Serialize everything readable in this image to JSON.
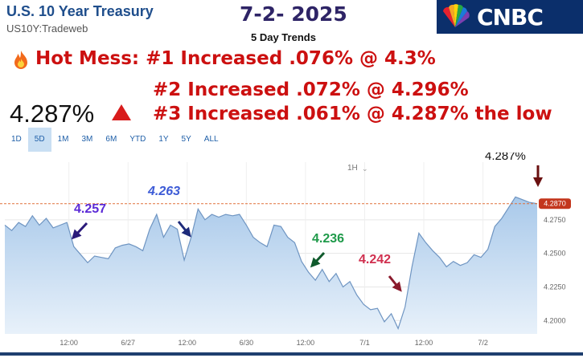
{
  "header": {
    "title": "U.S. 10 Year Treasury",
    "subtitle": "US10Y:Tradeweb",
    "date": "7-2- 2025",
    "trends_label": "5 Day Trends",
    "logo_text": "CNBC"
  },
  "headlines": {
    "line1": "Hot Mess: #1 Increased .076% @ 4.3%",
    "line2": "#2 Increased .072% @ 4.296%",
    "line3": "#3 Increased .061% @ 4.287% the low"
  },
  "quote": {
    "price": "4.287%",
    "direction_icon": "triangle-up-icon",
    "direction_color": "#d81c1c"
  },
  "range_tabs": [
    {
      "label": "1D",
      "active": false
    },
    {
      "label": "5D",
      "active": true
    },
    {
      "label": "1M",
      "active": false
    },
    {
      "label": "3M",
      "active": false
    },
    {
      "label": "6M",
      "active": false
    },
    {
      "label": "YTD",
      "active": false
    },
    {
      "label": "1Y",
      "active": false
    },
    {
      "label": "5Y",
      "active": false
    },
    {
      "label": "ALL",
      "active": false
    }
  ],
  "interval_label": "1H",
  "chart_data": {
    "type": "area",
    "ylim": [
      4.19,
      4.3
    ],
    "y_ticks": [
      "4.2750",
      "4.2500",
      "4.2250",
      "4.2000"
    ],
    "y_tick_values": [
      4.275,
      4.25,
      4.225,
      4.2
    ],
    "x_ticks": [
      {
        "label": "12:00",
        "x": 6.5
      },
      {
        "label": "6/27",
        "x": 12.5
      },
      {
        "label": "12:00",
        "x": 18.5
      },
      {
        "label": "6/30",
        "x": 24.5
      },
      {
        "label": "12:00",
        "x": 30.5
      },
      {
        "label": "7/1",
        "x": 36.5
      },
      {
        "label": "12:00",
        "x": 42.5
      },
      {
        "label": "7/2",
        "x": 48.5
      }
    ],
    "x_range": [
      0,
      54
    ],
    "last_value": 4.287,
    "last_value_label": "4.2870",
    "series": [
      {
        "values": [
          [
            0,
            4.271
          ],
          [
            0.7,
            4.267
          ],
          [
            1.4,
            4.273
          ],
          [
            2.1,
            4.27
          ],
          [
            2.8,
            4.278
          ],
          [
            3.5,
            4.271
          ],
          [
            4.2,
            4.276
          ],
          [
            4.9,
            4.269
          ],
          [
            5.6,
            4.271
          ],
          [
            6.3,
            4.273
          ],
          [
            7.0,
            4.255
          ],
          [
            7.7,
            4.249
          ],
          [
            8.4,
            4.243
          ],
          [
            9.1,
            4.248
          ],
          [
            9.8,
            4.247
          ],
          [
            10.5,
            4.246
          ],
          [
            11.2,
            4.254
          ],
          [
            11.9,
            4.256
          ],
          [
            12.6,
            4.257
          ],
          [
            13.3,
            4.255
          ],
          [
            14.0,
            4.252
          ],
          [
            14.7,
            4.268
          ],
          [
            15.4,
            4.279
          ],
          [
            16.1,
            4.262
          ],
          [
            16.8,
            4.271
          ],
          [
            17.5,
            4.268
          ],
          [
            18.2,
            4.245
          ],
          [
            18.9,
            4.262
          ],
          [
            19.6,
            4.283
          ],
          [
            20.3,
            4.275
          ],
          [
            21.0,
            4.279
          ],
          [
            21.7,
            4.277
          ],
          [
            22.4,
            4.279
          ],
          [
            23.1,
            4.278
          ],
          [
            23.8,
            4.279
          ],
          [
            24.5,
            4.271
          ],
          [
            25.2,
            4.262
          ],
          [
            25.9,
            4.258
          ],
          [
            26.6,
            4.255
          ],
          [
            27.3,
            4.271
          ],
          [
            28.0,
            4.27
          ],
          [
            28.7,
            4.262
          ],
          [
            29.4,
            4.258
          ],
          [
            30.1,
            4.244
          ],
          [
            30.8,
            4.236
          ],
          [
            31.5,
            4.23
          ],
          [
            32.2,
            4.238
          ],
          [
            32.9,
            4.229
          ],
          [
            33.6,
            4.235
          ],
          [
            34.3,
            4.225
          ],
          [
            35.0,
            4.229
          ],
          [
            35.7,
            4.219
          ],
          [
            36.4,
            4.212
          ],
          [
            37.1,
            4.208
          ],
          [
            37.8,
            4.209
          ],
          [
            38.5,
            4.199
          ],
          [
            39.2,
            4.205
          ],
          [
            39.9,
            4.194
          ],
          [
            40.6,
            4.21
          ],
          [
            41.3,
            4.24
          ],
          [
            42.0,
            4.265
          ],
          [
            42.7,
            4.258
          ],
          [
            43.4,
            4.252
          ],
          [
            44.1,
            4.247
          ],
          [
            44.8,
            4.24
          ],
          [
            45.5,
            4.244
          ],
          [
            46.2,
            4.241
          ],
          [
            46.9,
            4.243
          ],
          [
            47.6,
            4.249
          ],
          [
            48.3,
            4.247
          ],
          [
            49.0,
            4.253
          ],
          [
            49.7,
            4.27
          ],
          [
            50.4,
            4.276
          ],
          [
            51.1,
            4.284
          ],
          [
            51.8,
            4.292
          ],
          [
            52.5,
            4.29
          ],
          [
            53.2,
            4.288
          ],
          [
            54.0,
            4.287
          ]
        ]
      }
    ],
    "annotations": [
      {
        "text": "4.257",
        "color": "#5b2ad6"
      },
      {
        "text": "4.263",
        "color": "#3d5bd6"
      },
      {
        "text": "4.236",
        "color": "#1f9a4a"
      },
      {
        "text": "4.242",
        "color": "#d0304f"
      },
      {
        "text": "4.287%",
        "color": "#111111"
      }
    ]
  }
}
